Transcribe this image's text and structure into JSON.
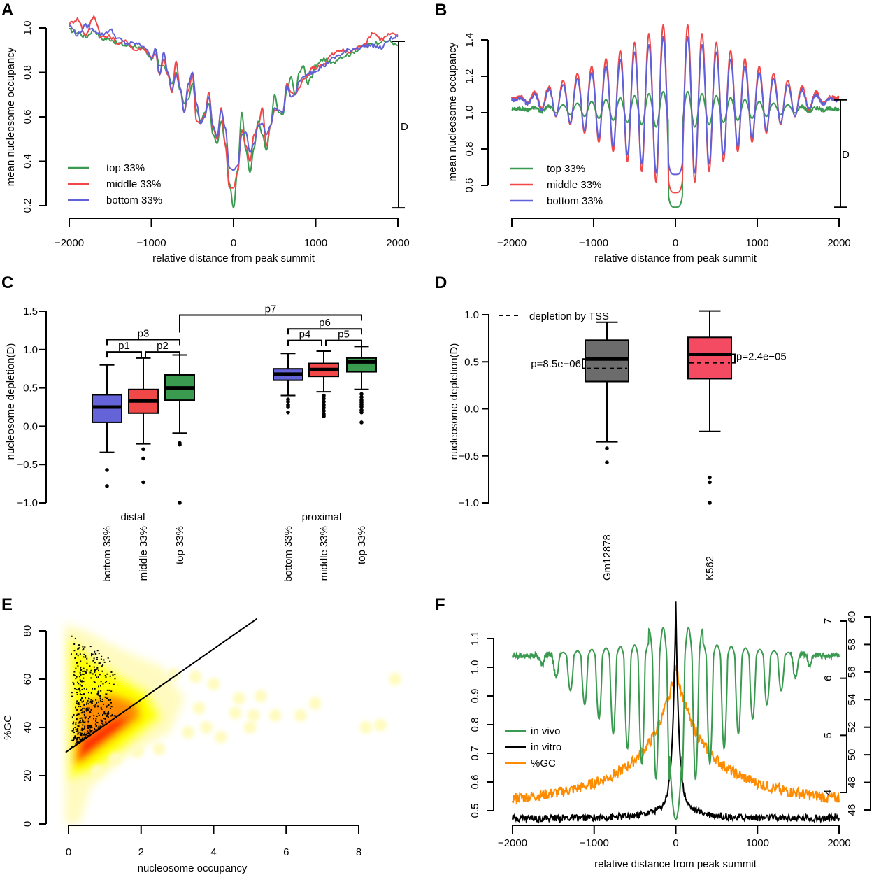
{
  "figure": {
    "panels": [
      "A",
      "B",
      "C",
      "D",
      "E",
      "F"
    ]
  },
  "chart_data": [
    {
      "panel": "A",
      "type": "line",
      "xlabel": "relative distance from peak summit",
      "ylabel": "mean nucleosome occupancy",
      "xlim": [
        -2000,
        2000
      ],
      "ylim": [
        0.2,
        1.0
      ],
      "xticks": [
        -2000,
        -1000,
        0,
        1000,
        2000
      ],
      "yticks": [
        0.2,
        0.4,
        0.6,
        0.8,
        1.0
      ],
      "xtick_labels": [
        "−2000",
        "−1000",
        "0",
        "1000",
        "2000"
      ],
      "ytick_labels": [
        "0.2",
        "0.4",
        "0.6",
        "0.8",
        "1.0"
      ],
      "annotation": {
        "label": "D",
        "from": 0.19,
        "to": 0.94
      },
      "legend": {
        "position": "bottom-left",
        "entries": [
          "top 33%",
          "middle 33%",
          "bottom 33%"
        ]
      },
      "x": [
        -2000,
        -1900,
        -1800,
        -1700,
        -1600,
        -1500,
        -1400,
        -1300,
        -1200,
        -1100,
        -1000,
        -950,
        -900,
        -850,
        -800,
        -750,
        -700,
        -650,
        -600,
        -550,
        -500,
        -450,
        -400,
        -350,
        -300,
        -250,
        -200,
        -150,
        -100,
        -50,
        0,
        50,
        100,
        150,
        200,
        250,
        300,
        350,
        400,
        450,
        500,
        550,
        600,
        650,
        700,
        750,
        800,
        850,
        900,
        950,
        1000,
        1100,
        1200,
        1300,
        1400,
        1500,
        1600,
        1700,
        1800,
        1900,
        2000
      ],
      "series": [
        {
          "name": "top 33%",
          "color": "#3a9a50",
          "values": [
            0.99,
            0.98,
            0.96,
            0.99,
            0.95,
            0.95,
            0.93,
            0.92,
            0.92,
            0.9,
            0.86,
            0.9,
            0.83,
            0.83,
            0.79,
            0.75,
            0.8,
            0.72,
            0.66,
            0.68,
            0.75,
            0.63,
            0.58,
            0.62,
            0.66,
            0.52,
            0.48,
            0.58,
            0.48,
            0.3,
            0.19,
            0.36,
            0.62,
            0.45,
            0.35,
            0.46,
            0.58,
            0.52,
            0.45,
            0.56,
            0.7,
            0.62,
            0.61,
            0.72,
            0.78,
            0.7,
            0.8,
            0.83,
            0.75,
            0.78,
            0.83,
            0.86,
            0.84,
            0.87,
            0.88,
            0.9,
            0.92,
            0.93,
            0.94,
            0.94,
            0.92
          ]
        },
        {
          "name": "middle 33%",
          "color": "#f04848",
          "values": [
            1.02,
            1.04,
            0.97,
            1.05,
            0.96,
            0.96,
            0.93,
            0.94,
            0.9,
            0.91,
            0.87,
            0.88,
            0.79,
            0.86,
            0.79,
            0.71,
            0.85,
            0.73,
            0.62,
            0.72,
            0.79,
            0.58,
            0.57,
            0.61,
            0.71,
            0.55,
            0.5,
            0.64,
            0.47,
            0.28,
            0.28,
            0.35,
            0.54,
            0.47,
            0.4,
            0.52,
            0.56,
            0.64,
            0.47,
            0.56,
            0.63,
            0.63,
            0.62,
            0.75,
            0.71,
            0.7,
            0.73,
            0.77,
            0.78,
            0.82,
            0.82,
            0.84,
            0.88,
            0.9,
            0.89,
            0.91,
            0.93,
            0.98,
            0.95,
            0.97,
            0.97
          ]
        },
        {
          "name": "bottom 33%",
          "color": "#6060d8",
          "values": [
            1.01,
            0.97,
            1.01,
            0.99,
            0.97,
            0.99,
            0.95,
            0.93,
            0.93,
            0.92,
            0.87,
            0.9,
            0.79,
            0.89,
            0.8,
            0.72,
            0.79,
            0.73,
            0.62,
            0.75,
            0.8,
            0.66,
            0.57,
            0.6,
            0.69,
            0.56,
            0.51,
            0.63,
            0.55,
            0.37,
            0.36,
            0.38,
            0.52,
            0.53,
            0.44,
            0.48,
            0.56,
            0.57,
            0.52,
            0.56,
            0.64,
            0.63,
            0.62,
            0.74,
            0.69,
            0.7,
            0.76,
            0.78,
            0.79,
            0.8,
            0.81,
            0.83,
            0.86,
            0.88,
            0.9,
            0.91,
            0.92,
            0.92,
            0.91,
            0.95,
            0.96
          ]
        }
      ]
    },
    {
      "panel": "B",
      "type": "line",
      "xlabel": "relative distance from peak summit",
      "ylabel": "mean nucleosome occupancy",
      "xlim": [
        -2000,
        2000
      ],
      "ylim": [
        0.6,
        1.4
      ],
      "xticks": [
        -2000,
        -1000,
        0,
        1000,
        2000
      ],
      "yticks": [
        0.6,
        0.8,
        1.0,
        1.2,
        1.4
      ],
      "xtick_labels": [
        "−2000",
        "−1000",
        "0",
        "1000",
        "2000"
      ],
      "ytick_labels": [
        "0.6",
        "0.8",
        "1.0",
        "1.2",
        "1.4"
      ],
      "annotation": {
        "label": "D",
        "from": 0.48,
        "to": 1.07
      },
      "legend": {
        "position": "bottom-left",
        "entries": [
          "top 33%",
          "middle 33%",
          "bottom 33%"
        ]
      },
      "period_bp": 175,
      "series": [
        {
          "name": "top 33%",
          "color": "#3a9a50",
          "baseline": 1.04,
          "center_peak": 1.14,
          "center_min": 0.48
        },
        {
          "name": "middle 33%",
          "color": "#f04848",
          "baseline": 1.1,
          "center_peak": 1.52,
          "center_min": 0.56
        },
        {
          "name": "bottom 33%",
          "color": "#6060d8",
          "baseline": 1.09,
          "center_peak": 1.45,
          "center_min": 0.66
        }
      ]
    },
    {
      "panel": "C",
      "type": "box",
      "ylabel": "nucleosome depletion(D)",
      "ylim": [
        -1.0,
        1.5
      ],
      "yticks": [
        -1.0,
        -0.5,
        0.0,
        0.5,
        1.0,
        1.5
      ],
      "ytick_labels": [
        "−1.0",
        "−0.5",
        "0.0",
        "0.5",
        "1.0",
        "1.5"
      ],
      "groups": [
        {
          "label": "distal",
          "boxes": [
            {
              "label": "bottom 33%",
              "color": "#6464d8",
              "whisker_low": -0.34,
              "q1": 0.05,
              "median": 0.25,
              "q3": 0.41,
              "whisker_high": 0.8,
              "outliers": [
                -0.57,
                -0.78
              ]
            },
            {
              "label": "middle 33%",
              "color": "#f04848",
              "whisker_low": -0.23,
              "q1": 0.17,
              "median": 0.33,
              "q3": 0.48,
              "whisker_high": 0.89,
              "outliers": [
                -0.3,
                -0.42,
                -0.73
              ]
            },
            {
              "label": "top 33%",
              "color": "#3a9a50",
              "whisker_low": -0.09,
              "q1": 0.34,
              "median": 0.5,
              "q3": 0.67,
              "whisker_high": 0.93,
              "outliers": [
                -0.22,
                -0.24,
                -1.0
              ]
            }
          ]
        },
        {
          "label": "proximal",
          "boxes": [
            {
              "label": "bottom 33%",
              "color": "#6464d8",
              "whisker_low": 0.4,
              "q1": 0.6,
              "median": 0.68,
              "q3": 0.75,
              "whisker_high": 0.95,
              "outliers": [
                0.35,
                0.32,
                0.28,
                0.25,
                0.18
              ]
            },
            {
              "label": "middle 33%",
              "color": "#f04848",
              "whisker_low": 0.45,
              "q1": 0.65,
              "median": 0.74,
              "q3": 0.82,
              "whisker_high": 0.98,
              "outliers": [
                0.4,
                0.36,
                0.32,
                0.28,
                0.24,
                0.2,
                0.16,
                0.13
              ]
            },
            {
              "label": "top 33%",
              "color": "#3a9a50",
              "whisker_low": 0.48,
              "q1": 0.71,
              "median": 0.84,
              "q3": 0.89,
              "whisker_high": 1.04,
              "outliers": [
                0.42,
                0.38,
                0.34,
                0.31,
                0.28,
                0.25,
                0.21,
                0.18,
                0.05
              ]
            }
          ]
        }
      ],
      "brackets": [
        {
          "label": "p1",
          "from": [
            0,
            0
          ],
          "to": [
            0,
            1
          ],
          "level": 0.97
        },
        {
          "label": "p2",
          "from": [
            0,
            1
          ],
          "to": [
            0,
            2
          ],
          "level": 0.97
        },
        {
          "label": "p3",
          "from": [
            0,
            0
          ],
          "to": [
            0,
            2
          ],
          "level": 1.13
        },
        {
          "label": "p4",
          "from": [
            1,
            0
          ],
          "to": [
            1,
            1
          ],
          "level": 1.12
        },
        {
          "label": "p5",
          "from": [
            1,
            1
          ],
          "to": [
            1,
            2
          ],
          "level": 1.12
        },
        {
          "label": "p6",
          "from": [
            1,
            0
          ],
          "to": [
            1,
            2
          ],
          "level": 1.27
        },
        {
          "label": "p7",
          "from": [
            0,
            2
          ],
          "to": [
            1,
            2
          ],
          "level": 1.45
        }
      ]
    },
    {
      "panel": "D",
      "type": "box",
      "ylabel": "nucleosome depletion(D)",
      "ylim": [
        -1.0,
        1.0
      ],
      "yticks": [
        -1.0,
        -0.5,
        0.0,
        0.5,
        1.0
      ],
      "ytick_labels": [
        "−1.0",
        "−0.5",
        "0.0",
        "0.5",
        "1.0"
      ],
      "legend": {
        "position": "top-left",
        "entries": [
          "depletion by TSS"
        ],
        "style": "dashed"
      },
      "boxes": [
        {
          "label": "Gm12878",
          "color": "#6c6c6c",
          "whisker_low": -0.35,
          "q1": 0.29,
          "median": 0.53,
          "q3": 0.73,
          "whisker_high": 0.92,
          "outliers": [
            -0.42,
            -0.57
          ],
          "tss_depletion": 0.43,
          "pvalue": "p=8.5e−06",
          "pvalue_side": "left"
        },
        {
          "label": "K562",
          "color": "#f44a62",
          "whisker_low": -0.24,
          "q1": 0.32,
          "median": 0.58,
          "q3": 0.76,
          "whisker_high": 1.04,
          "outliers": [
            -0.73,
            -0.78,
            -1.0
          ],
          "tss_depletion": 0.49,
          "pvalue": "p=2.4e−05",
          "pvalue_side": "right"
        }
      ]
    },
    {
      "panel": "E",
      "type": "heatmap",
      "subtype": "smoothScatter",
      "xlabel": "nucleosome occupancy",
      "ylabel": "%GC",
      "xlim": [
        0,
        8
      ],
      "ylim": [
        0,
        80
      ],
      "xticks": [
        0,
        2,
        4,
        6,
        8
      ],
      "yticks": [
        0,
        20,
        40,
        60,
        80
      ],
      "xtick_labels": [
        "0",
        "2",
        "4",
        "6",
        "8"
      ],
      "ytick_labels": [
        "0",
        "20",
        "40",
        "60",
        "80"
      ],
      "regression_line": {
        "intercept": 30.5,
        "slope": 10.5
      },
      "density_colors": [
        "#fffbc0",
        "#ffff00",
        "#ff8c00",
        "#ff1a00"
      ],
      "sparse_points": [
        [
          2.9,
          62
        ],
        [
          3.5,
          61
        ],
        [
          4.0,
          58
        ],
        [
          4.7,
          52
        ],
        [
          5.3,
          53
        ],
        [
          5.1,
          45
        ],
        [
          5.7,
          45
        ],
        [
          6.4,
          45
        ],
        [
          6.8,
          50
        ],
        [
          5.0,
          40
        ],
        [
          4.2,
          36
        ],
        [
          3.8,
          40
        ],
        [
          3.3,
          38
        ],
        [
          2.5,
          31
        ],
        [
          1.9,
          30
        ],
        [
          1.3,
          27
        ],
        [
          0.8,
          22
        ],
        [
          8.2,
          40
        ],
        [
          8.6,
          41
        ],
        [
          9.0,
          60
        ],
        [
          4.6,
          46
        ],
        [
          3.6,
          48
        ]
      ]
    },
    {
      "panel": "F",
      "type": "line",
      "xlabel": "relative distance from peak summit",
      "xlim": [
        -2000,
        2000
      ],
      "xticks": [
        -2000,
        -1000,
        0,
        1000,
        2000
      ],
      "xtick_labels": [
        "−2000",
        "−1000",
        "0",
        "1000",
        "2000"
      ],
      "axes": [
        {
          "side": "left",
          "color": "#3a9a50",
          "ylim": [
            0.5,
            1.1
          ],
          "yticks": [
            0.5,
            0.6,
            0.7,
            0.8,
            0.9,
            1.0,
            1.1
          ],
          "ytick_labels": [
            "0.5",
            "0.6",
            "0.7",
            "0.8",
            "0.9",
            "1.0",
            "1.1"
          ]
        },
        {
          "side": "right",
          "color": "#000000",
          "ylim": [
            4,
            7
          ],
          "yticks": [
            4,
            5,
            6,
            7
          ],
          "ytick_labels": [
            "4",
            "5",
            "6",
            "7"
          ]
        },
        {
          "side": "right-outer",
          "color": "#ff8c00",
          "ylim": [
            46,
            60
          ],
          "yticks": [
            46,
            48,
            50,
            52,
            54,
            56,
            58,
            60
          ],
          "ytick_labels": [
            "46",
            "48",
            "50",
            "52",
            "54",
            "56",
            "58",
            "60"
          ]
        }
      ],
      "legend": {
        "position": "center-left",
        "entries": [
          "in vivo",
          "in vitro",
          "%GC"
        ]
      },
      "series": [
        {
          "name": "in vivo",
          "color": "#3a9a50",
          "axis": "left",
          "baseline": 1.04,
          "center_min": 0.47,
          "center_peak": 1.13
        },
        {
          "name": "in vitro",
          "color": "#000000",
          "axis": "right",
          "baseline": 3.55,
          "peak": 6.95
        },
        {
          "name": "%GC",
          "color": "#ff8c00",
          "axis": "right-outer",
          "baseline": 46.5,
          "peak": 58.5
        }
      ]
    }
  ]
}
